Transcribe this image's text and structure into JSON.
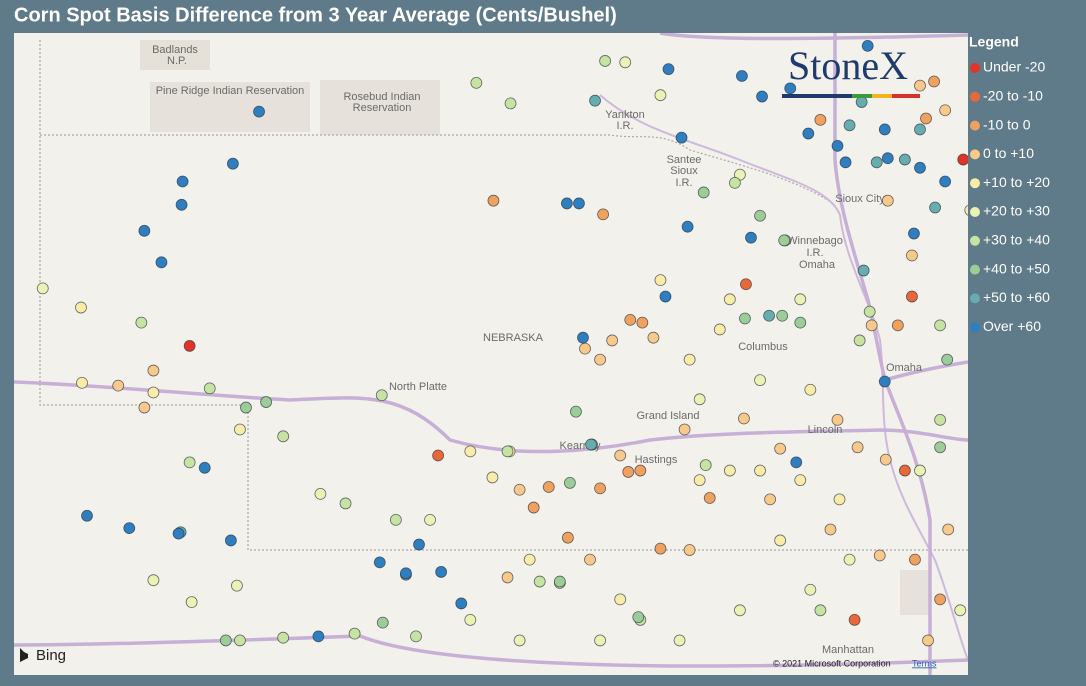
{
  "title": "Corn Spot Basis Difference from 3 Year Average (Cents/Bushel)",
  "logo": "StoneX",
  "legend": {
    "title": "Legend",
    "items": [
      {
        "label": "Under -20",
        "color": "#e0342a",
        "points": [
          [
            -103.04,
            41.42
          ],
          [
            -95.35,
            42.78
          ]
        ]
      },
      {
        "label": "-20 to -10",
        "color": "#e8683a",
        "points": [
          [
            -100.57,
            40.62
          ],
          [
            -97.51,
            41.87
          ],
          [
            -96.43,
            39.42
          ],
          [
            -95.93,
            40.51
          ],
          [
            -95.86,
            41.78
          ]
        ]
      },
      {
        "label": "-10 to 0",
        "color": "#f1a15e",
        "points": [
          [
            -100.02,
            42.48
          ],
          [
            -98.93,
            42.38
          ],
          [
            -98.66,
            41.61
          ],
          [
            -98.54,
            41.59
          ],
          [
            -99.47,
            40.39
          ],
          [
            -99.62,
            40.24
          ],
          [
            -98.96,
            40.38
          ],
          [
            -98.68,
            40.5
          ],
          [
            -98.56,
            40.51
          ],
          [
            -99.28,
            40.02
          ],
          [
            -98.36,
            39.94
          ],
          [
            -96.0,
            41.57
          ],
          [
            -95.58,
            39.57
          ],
          [
            -95.83,
            39.86
          ],
          [
            -95.72,
            43.08
          ],
          [
            -95.64,
            43.35
          ],
          [
            -96.77,
            43.07
          ],
          [
            -97.87,
            40.31
          ]
        ]
      },
      {
        "label": "0 to +10",
        "color": "#f8c98b",
        "points": [
          [
            -103.4,
            41.24
          ],
          [
            -103.75,
            41.13
          ],
          [
            -103.49,
            40.97
          ],
          [
            -98.43,
            41.48
          ],
          [
            -98.96,
            41.32
          ],
          [
            -99.11,
            41.4
          ],
          [
            -98.76,
            40.62
          ],
          [
            -98.12,
            40.81
          ],
          [
            -97.53,
            40.89
          ],
          [
            -97.17,
            40.67
          ],
          [
            -96.26,
            41.57
          ],
          [
            -95.86,
            42.08
          ],
          [
            -96.1,
            42.48
          ],
          [
            -95.53,
            43.14
          ],
          [
            -95.78,
            43.32
          ],
          [
            -96.6,
            40.88
          ],
          [
            -96.4,
            40.68
          ],
          [
            -96.12,
            40.59
          ],
          [
            -95.7,
            39.27
          ],
          [
            -96.18,
            39.89
          ],
          [
            -98.84,
            41.46
          ],
          [
            -99.76,
            40.37
          ],
          [
            -99.88,
            39.73
          ],
          [
            -99.06,
            39.86
          ],
          [
            -98.07,
            39.93
          ],
          [
            -97.27,
            40.3
          ],
          [
            -96.67,
            40.08
          ],
          [
            -95.5,
            40.08
          ]
        ]
      },
      {
        "label": "+10 to +20",
        "color": "#f9eca9",
        "points": [
          [
            -104.12,
            41.7
          ],
          [
            -104.11,
            41.15
          ],
          [
            -103.4,
            41.08
          ],
          [
            -102.54,
            40.81
          ],
          [
            -100.25,
            40.65
          ],
          [
            -100.03,
            40.46
          ],
          [
            -99.86,
            40.65
          ],
          [
            -99.66,
            39.86
          ],
          [
            -99.36,
            39.69
          ],
          [
            -98.76,
            39.57
          ],
          [
            -97.97,
            40.44
          ],
          [
            -97.67,
            40.51
          ],
          [
            -97.37,
            40.51
          ],
          [
            -97.17,
            40.0
          ],
          [
            -96.97,
            40.44
          ],
          [
            -96.58,
            40.3
          ],
          [
            -97.77,
            41.54
          ],
          [
            -97.67,
            41.76
          ],
          [
            -98.36,
            41.9
          ],
          [
            -98.07,
            41.32
          ],
          [
            -96.87,
            41.1
          ],
          [
            -95.28,
            42.41
          ]
        ]
      },
      {
        "label": "+20 to +30",
        "color": "#eaf2b4",
        "points": [
          [
            -104.5,
            41.84
          ],
          [
            -103.4,
            39.71
          ],
          [
            -103.02,
            39.55
          ],
          [
            -102.57,
            39.67
          ],
          [
            -101.74,
            40.34
          ],
          [
            -100.65,
            40.15
          ],
          [
            -100.25,
            39.42
          ],
          [
            -99.76,
            39.27
          ],
          [
            -98.96,
            39.27
          ],
          [
            -98.17,
            39.27
          ],
          [
            -97.57,
            39.49
          ],
          [
            -96.87,
            39.64
          ],
          [
            -96.48,
            39.86
          ],
          [
            -97.37,
            41.17
          ],
          [
            -97.97,
            41.03
          ],
          [
            -98.71,
            43.49
          ],
          [
            -98.36,
            43.25
          ],
          [
            -97.57,
            42.67
          ],
          [
            -96.97,
            41.76
          ],
          [
            -95.78,
            40.51
          ],
          [
            -95.38,
            39.49
          ]
        ]
      },
      {
        "label": "+30 to +40",
        "color": "#c6e3a2",
        "points": [
          [
            -103.52,
            41.59
          ],
          [
            -102.84,
            41.11
          ],
          [
            -102.11,
            40.76
          ],
          [
            -103.04,
            40.57
          ],
          [
            -101.49,
            40.27
          ],
          [
            -100.99,
            40.15
          ],
          [
            -102.54,
            39.27
          ],
          [
            -102.11,
            39.29
          ],
          [
            -101.4,
            39.32
          ],
          [
            -100.79,
            39.3
          ],
          [
            -100.19,
            43.34
          ],
          [
            -99.85,
            43.19
          ],
          [
            -98.91,
            43.5
          ],
          [
            -97.62,
            42.61
          ],
          [
            -97.12,
            42.19
          ],
          [
            -96.28,
            41.67
          ],
          [
            -96.38,
            41.46
          ],
          [
            -95.58,
            41.57
          ],
          [
            -95.58,
            40.88
          ],
          [
            -96.77,
            39.49
          ],
          [
            -98.56,
            39.42
          ],
          [
            -97.91,
            40.55
          ],
          [
            -99.56,
            39.7
          ],
          [
            -99.88,
            40.65
          ],
          [
            -101.13,
            41.06
          ]
        ]
      },
      {
        "label": "+40 to +50",
        "color": "#9ccd98",
        "points": [
          [
            -102.48,
            40.97
          ],
          [
            -102.28,
            41.01
          ],
          [
            -99.2,
            40.94
          ],
          [
            -99.04,
            40.7
          ],
          [
            -99.26,
            40.42
          ],
          [
            -99.36,
            39.7
          ],
          [
            -98.58,
            39.44
          ],
          [
            -97.37,
            42.37
          ],
          [
            -97.13,
            42.19
          ],
          [
            -97.52,
            41.62
          ],
          [
            -97.15,
            41.64
          ],
          [
            -96.97,
            41.59
          ],
          [
            -95.51,
            41.32
          ],
          [
            -95.58,
            40.68
          ],
          [
            -101.12,
            39.4
          ],
          [
            -102.68,
            39.27
          ],
          [
            -97.93,
            42.54
          ]
        ]
      },
      {
        "label": "+50 to +60",
        "color": "#67acae",
        "points": [
          [
            -99.01,
            43.21
          ],
          [
            -97.28,
            41.64
          ],
          [
            -96.34,
            41.97
          ],
          [
            -96.48,
            43.03
          ],
          [
            -96.21,
            42.76
          ],
          [
            -95.93,
            42.78
          ],
          [
            -95.78,
            43.0
          ],
          [
            -95.63,
            42.43
          ],
          [
            -103.13,
            40.06
          ],
          [
            -100.89,
            39.75
          ],
          [
            -96.36,
            43.2
          ],
          [
            -99.05,
            40.7
          ]
        ]
      },
      {
        "label": "Over +60",
        "color": "#2e7ec0",
        "points": [
          [
            -102.35,
            43.13
          ],
          [
            -102.61,
            42.75
          ],
          [
            -103.11,
            42.62
          ],
          [
            -103.12,
            42.45
          ],
          [
            -103.49,
            42.26
          ],
          [
            -103.32,
            42.03
          ],
          [
            -104.06,
            40.18
          ],
          [
            -103.64,
            40.09
          ],
          [
            -103.15,
            40.05
          ],
          [
            -102.63,
            40.0
          ],
          [
            -101.76,
            39.3
          ],
          [
            -100.89,
            39.76
          ],
          [
            -100.76,
            39.97
          ],
          [
            -100.54,
            39.77
          ],
          [
            -100.34,
            39.54
          ],
          [
            -101.15,
            39.84
          ],
          [
            -102.89,
            40.53
          ],
          [
            -99.29,
            42.46
          ],
          [
            -99.17,
            42.46
          ],
          [
            -98.09,
            42.29
          ],
          [
            -97.46,
            42.21
          ],
          [
            -98.15,
            42.94
          ],
          [
            -98.28,
            43.44
          ],
          [
            -98.31,
            41.78
          ],
          [
            -99.13,
            41.48
          ],
          [
            -96.13,
            41.16
          ],
          [
            -97.01,
            40.57
          ],
          [
            -97.55,
            43.39
          ],
          [
            -97.35,
            43.24
          ],
          [
            -96.89,
            42.97
          ],
          [
            -96.52,
            42.76
          ],
          [
            -96.1,
            42.79
          ],
          [
            -95.78,
            42.72
          ],
          [
            -95.53,
            42.62
          ],
          [
            -95.84,
            42.24
          ],
          [
            -96.13,
            43.0
          ],
          [
            -96.6,
            42.88
          ],
          [
            -97.07,
            43.3
          ],
          [
            -96.3,
            43.61
          ]
        ]
      }
    ]
  },
  "map": {
    "labels": [
      "Badlands",
      "N.P.",
      "Pine Ridge Indian Reservation",
      "Rosebud Indian",
      "Reservation",
      "Yankton",
      "I.R.",
      "Santee",
      "Sioux",
      "I.R.",
      "Sioux City",
      "Winnebago",
      "I.R.",
      "Omaha",
      "NEBRASKA",
      "North Platte",
      "Columbus",
      "Omaha",
      "Grand Island",
      "Kearney",
      "Hastings",
      "Lincoln",
      "Manhattan"
    ],
    "provider": "Bing",
    "attribution": "© 2021 Microsoft Corporation",
    "terms": "Terms"
  }
}
